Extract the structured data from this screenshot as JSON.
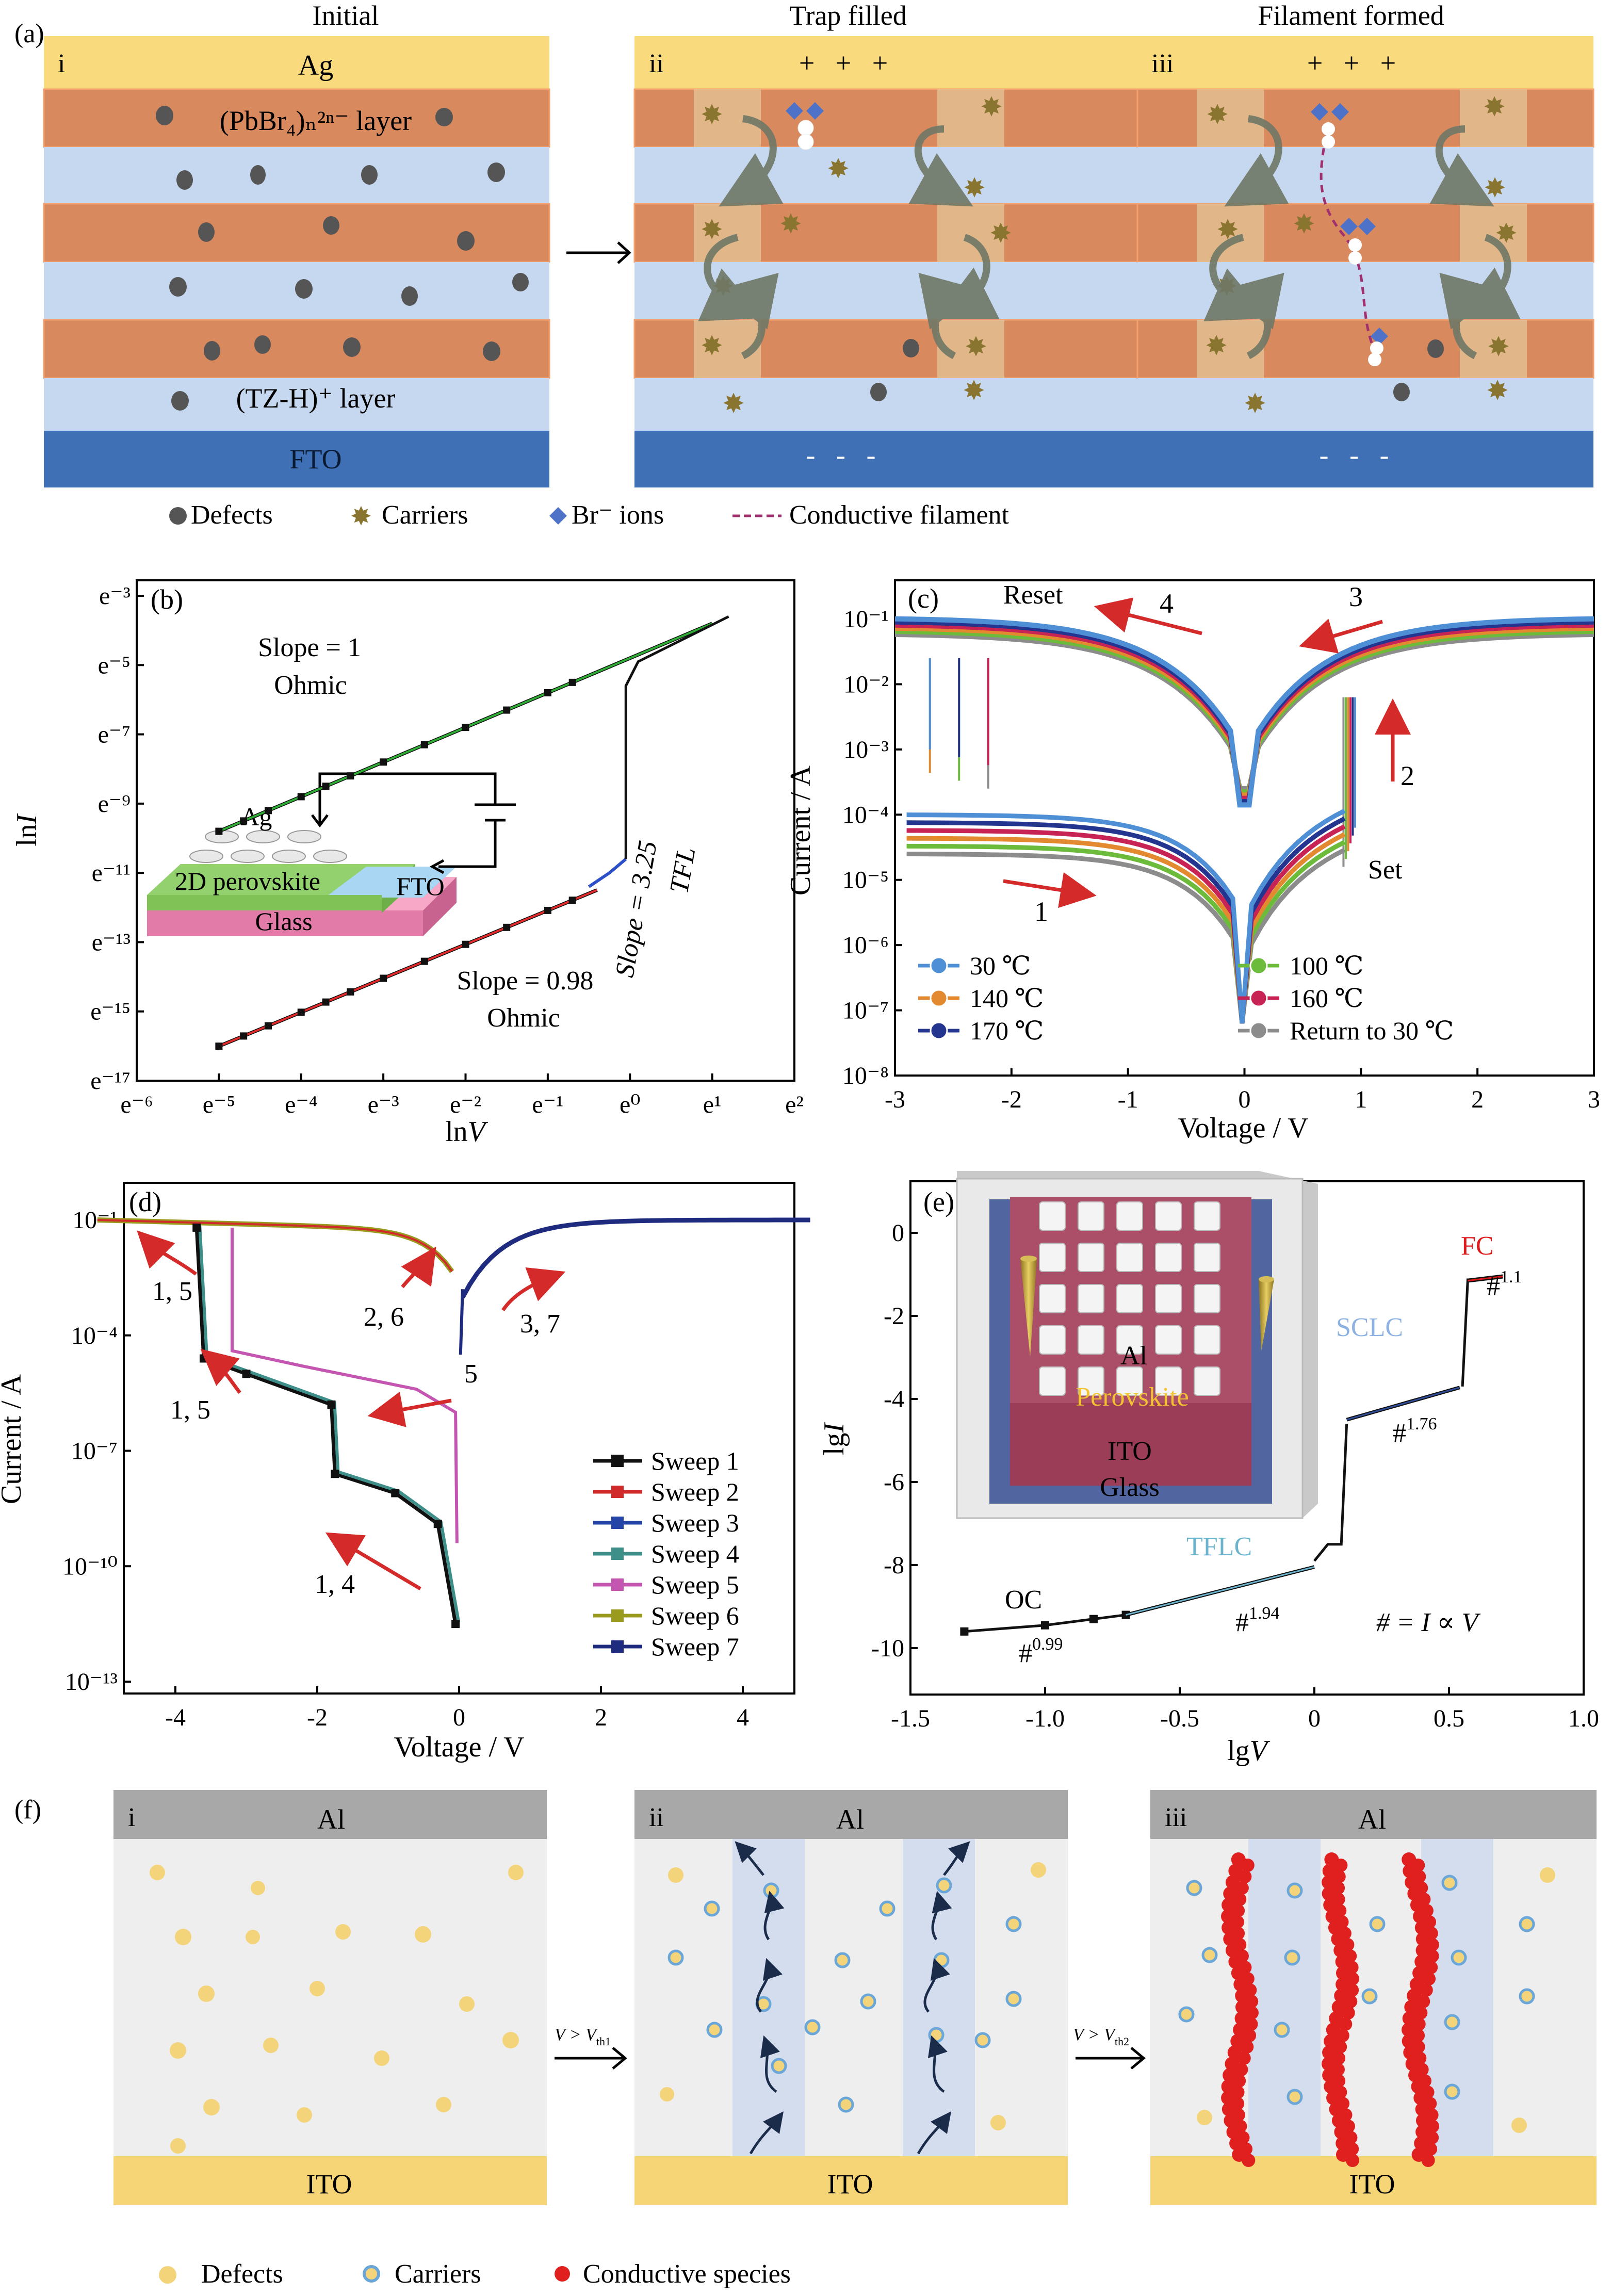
{
  "panel_a": {
    "label": "(a)",
    "titles": [
      "Initial",
      "Trap filled",
      "Filament formed"
    ],
    "romans": [
      "i",
      "ii",
      "iii"
    ],
    "top_electrode": "Ag",
    "bottom_electrode": "FTO",
    "layer1_label": "(PbBr₄)ₙ²ⁿ⁻ layer",
    "layer2_label": "(TZ-H)⁺ layer",
    "plus_signs": "+   +   +",
    "minus_signs": "-   -   -",
    "legend": [
      "Defects",
      "Carriers",
      "Br⁻ ions",
      "Conductive filament"
    ],
    "colors": {
      "electrode_top": "#F9DA7C",
      "perovskite": "#D9895E",
      "organic": "#C6D8EF",
      "fto": "#3F6FB4",
      "carrier": "#8A7530",
      "br_ion": "#4D72C8",
      "filament": "#A0306E"
    }
  },
  "panel_b": {
    "label": "(b)",
    "xlabel": "lnV",
    "ylabel": "lnI",
    "x_ticks": [
      "e⁻⁶",
      "e⁻⁵",
      "e⁻⁴",
      "e⁻³",
      "e⁻²",
      "e⁻¹",
      "e⁰",
      "e¹",
      "e²"
    ],
    "y_ticks": [
      "e⁻³",
      "e⁻⁵",
      "e⁻⁷",
      "e⁻⁹",
      "e⁻¹¹",
      "e⁻¹³",
      "e⁻¹⁵",
      "e⁻¹⁷"
    ],
    "ann_slope1": "Slope = 1",
    "ann_ohmic1": "Ohmic",
    "ann_slope2": "Slope = 0.98",
    "ann_ohmic2": "Ohmic",
    "ann_tfl_slope": "Slope = 3.25",
    "ann_tfl": "TFL",
    "inset": {
      "top": "Ag",
      "mid": "2D perovskite",
      "side": "FTO",
      "bottom": "Glass"
    }
  },
  "panel_c": {
    "label": "(c)",
    "xlabel": "Voltage / V",
    "ylabel": "Current / A",
    "x_ticks": [
      "-3",
      "-2",
      "-1",
      "0",
      "1",
      "2",
      "3"
    ],
    "y_ticks": [
      "10⁻¹",
      "10⁻²",
      "10⁻³",
      "10⁻⁴",
      "10⁻⁵",
      "10⁻⁶",
      "10⁻⁷",
      "10⁻⁸"
    ],
    "ann": {
      "reset": "Reset",
      "set": "Set",
      "n1": "1",
      "n2": "2",
      "n3": "3",
      "n4": "4"
    },
    "legend": [
      "30 ℃",
      "100 ℃",
      "140 ℃",
      "160 ℃",
      "170 ℃",
      "Return to 30 ℃"
    ],
    "colors": [
      "#4F8FD6",
      "#6DBB3A",
      "#E38A30",
      "#C82355",
      "#24358F",
      "#8C8C8C"
    ]
  },
  "panel_d": {
    "label": "(d)",
    "xlabel": "Voltage / V",
    "ylabel": "Current / A",
    "x_ticks": [
      "-4",
      "-2",
      "0",
      "2",
      "4"
    ],
    "y_ticks": [
      "10⁻¹",
      "10⁻⁴",
      "10⁻⁷",
      "10⁻¹⁰",
      "10⁻¹³"
    ],
    "ann": [
      "1, 5",
      "2, 6",
      "3, 7",
      "1, 5",
      "5",
      "1, 4"
    ],
    "legend": [
      "Sweep 1",
      "Sweep 2",
      "Sweep 3",
      "Sweep 4",
      "Sweep 5",
      "Sweep 6",
      "Sweep 7"
    ],
    "colors": [
      "#111111",
      "#D12A2A",
      "#2444A8",
      "#3E8E8A",
      "#C455B0",
      "#9A9A1E",
      "#1E2B7E"
    ]
  },
  "panel_e": {
    "label": "(e)",
    "xlabel": "lgV",
    "ylabel": "lgI",
    "x_ticks": [
      "-1.5",
      "-1.0",
      "-0.5",
      "0",
      "0.5",
      "1.0"
    ],
    "y_ticks": [
      "0",
      "-2",
      "-4",
      "-6",
      "-8",
      "-10"
    ],
    "ann": {
      "fc": "FC",
      "sclc": "SCLC",
      "tflc": "TFLC",
      "oc": "OC",
      "p1": "#",
      "e1": "1.1",
      "p2": "#",
      "e2": "1.76",
      "p3": "#",
      "e3": "1.94",
      "p4": "#",
      "e4": "0.99",
      "rel": "# = I ∝ V"
    },
    "inset": {
      "al": "Al",
      "perov": "Perovskite",
      "ito": "ITO",
      "glass": "Glass"
    }
  },
  "panel_f": {
    "label": "(f)",
    "romans": [
      "i",
      "ii",
      "iii"
    ],
    "top": "Al",
    "bottom": "ITO",
    "arrow1": "V > V",
    "arrow1_sub": "th1",
    "arrow2": "V > V",
    "arrow2_sub": "th2",
    "legend": [
      "Defects",
      "Carriers",
      "Conductive species"
    ],
    "colors": {
      "defect": "#F4D47A",
      "carrier_ring": "#6AA7D8",
      "species": "#E0201E",
      "electrode_top": "#A8A8A8",
      "electrode_bottom": "#F5D575"
    }
  }
}
